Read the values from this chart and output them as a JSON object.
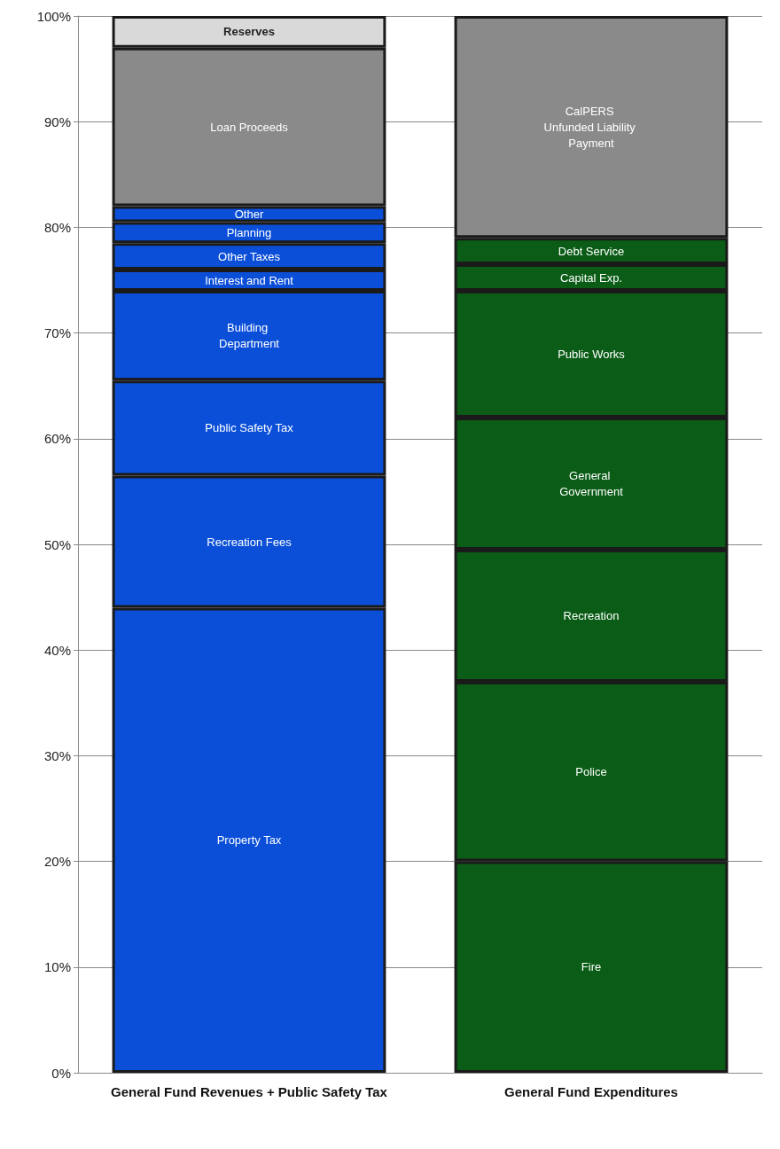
{
  "chart_data": {
    "type": "bar",
    "stacked": true,
    "categories": [
      "General Fund Revenues + Public Safety Tax",
      "General Fund Expenditures"
    ],
    "series": [
      {
        "name": "Property Tax",
        "color": "#0b4fd8",
        "values": [
          44,
          null
        ]
      },
      {
        "name": "Recreation Fees",
        "color": "#0b4fd8",
        "values": [
          12.5,
          null
        ]
      },
      {
        "name": "Public Safety Tax",
        "color": "#0b4fd8",
        "values": [
          9,
          null
        ]
      },
      {
        "name": "Building Department",
        "color": "#0b4fd8",
        "values": [
          8.5,
          null
        ]
      },
      {
        "name": "Interest and Rent",
        "color": "#0b4fd8",
        "values": [
          2,
          null
        ]
      },
      {
        "name": "Other Taxes",
        "color": "#0b4fd8",
        "values": [
          2.5,
          null
        ]
      },
      {
        "name": "Planning",
        "color": "#0b4fd8",
        "values": [
          2,
          null
        ]
      },
      {
        "name": "Other",
        "color": "#0b4fd8",
        "values": [
          1.5,
          null
        ]
      },
      {
        "name": "Loan Proceeds",
        "color": "#8a8a8a",
        "values": [
          15,
          null
        ]
      },
      {
        "name": "Reserves",
        "color": "#d9d9d9",
        "values": [
          3,
          null
        ]
      },
      {
        "name": "Fire",
        "color": "#0a5c16",
        "values": [
          null,
          20
        ]
      },
      {
        "name": "Police",
        "color": "#0a5c16",
        "values": [
          null,
          17
        ]
      },
      {
        "name": "Recreation",
        "color": "#0a5c16",
        "values": [
          null,
          12.5
        ]
      },
      {
        "name": "General Government",
        "color": "#0a5c16",
        "values": [
          null,
          12.5
        ]
      },
      {
        "name": "Public Works",
        "color": "#0a5c16",
        "values": [
          null,
          12
        ]
      },
      {
        "name": "Capital Exp.",
        "color": "#0a5c16",
        "values": [
          null,
          2.5
        ]
      },
      {
        "name": "Debt Service",
        "color": "#0a5c16",
        "values": [
          null,
          2.5
        ]
      },
      {
        "name": "CalPERS Unfunded Liability Payment",
        "color": "#8a8a8a",
        "values": [
          null,
          21
        ]
      }
    ],
    "ylim": [
      0,
      100
    ],
    "yticks": [
      {
        "value": 0,
        "label": "0%"
      },
      {
        "value": 10,
        "label": "10%"
      },
      {
        "value": 20,
        "label": "20%"
      },
      {
        "value": 30,
        "label": "30%"
      },
      {
        "value": 40,
        "label": "40%"
      },
      {
        "value": 50,
        "label": "50%"
      },
      {
        "value": 60,
        "label": "60%"
      },
      {
        "value": 70,
        "label": "70%"
      },
      {
        "value": 80,
        "label": "80%"
      },
      {
        "value": 90,
        "label": "90%"
      },
      {
        "value": 100,
        "label": "100%"
      }
    ],
    "grid": "y",
    "legend": false
  }
}
